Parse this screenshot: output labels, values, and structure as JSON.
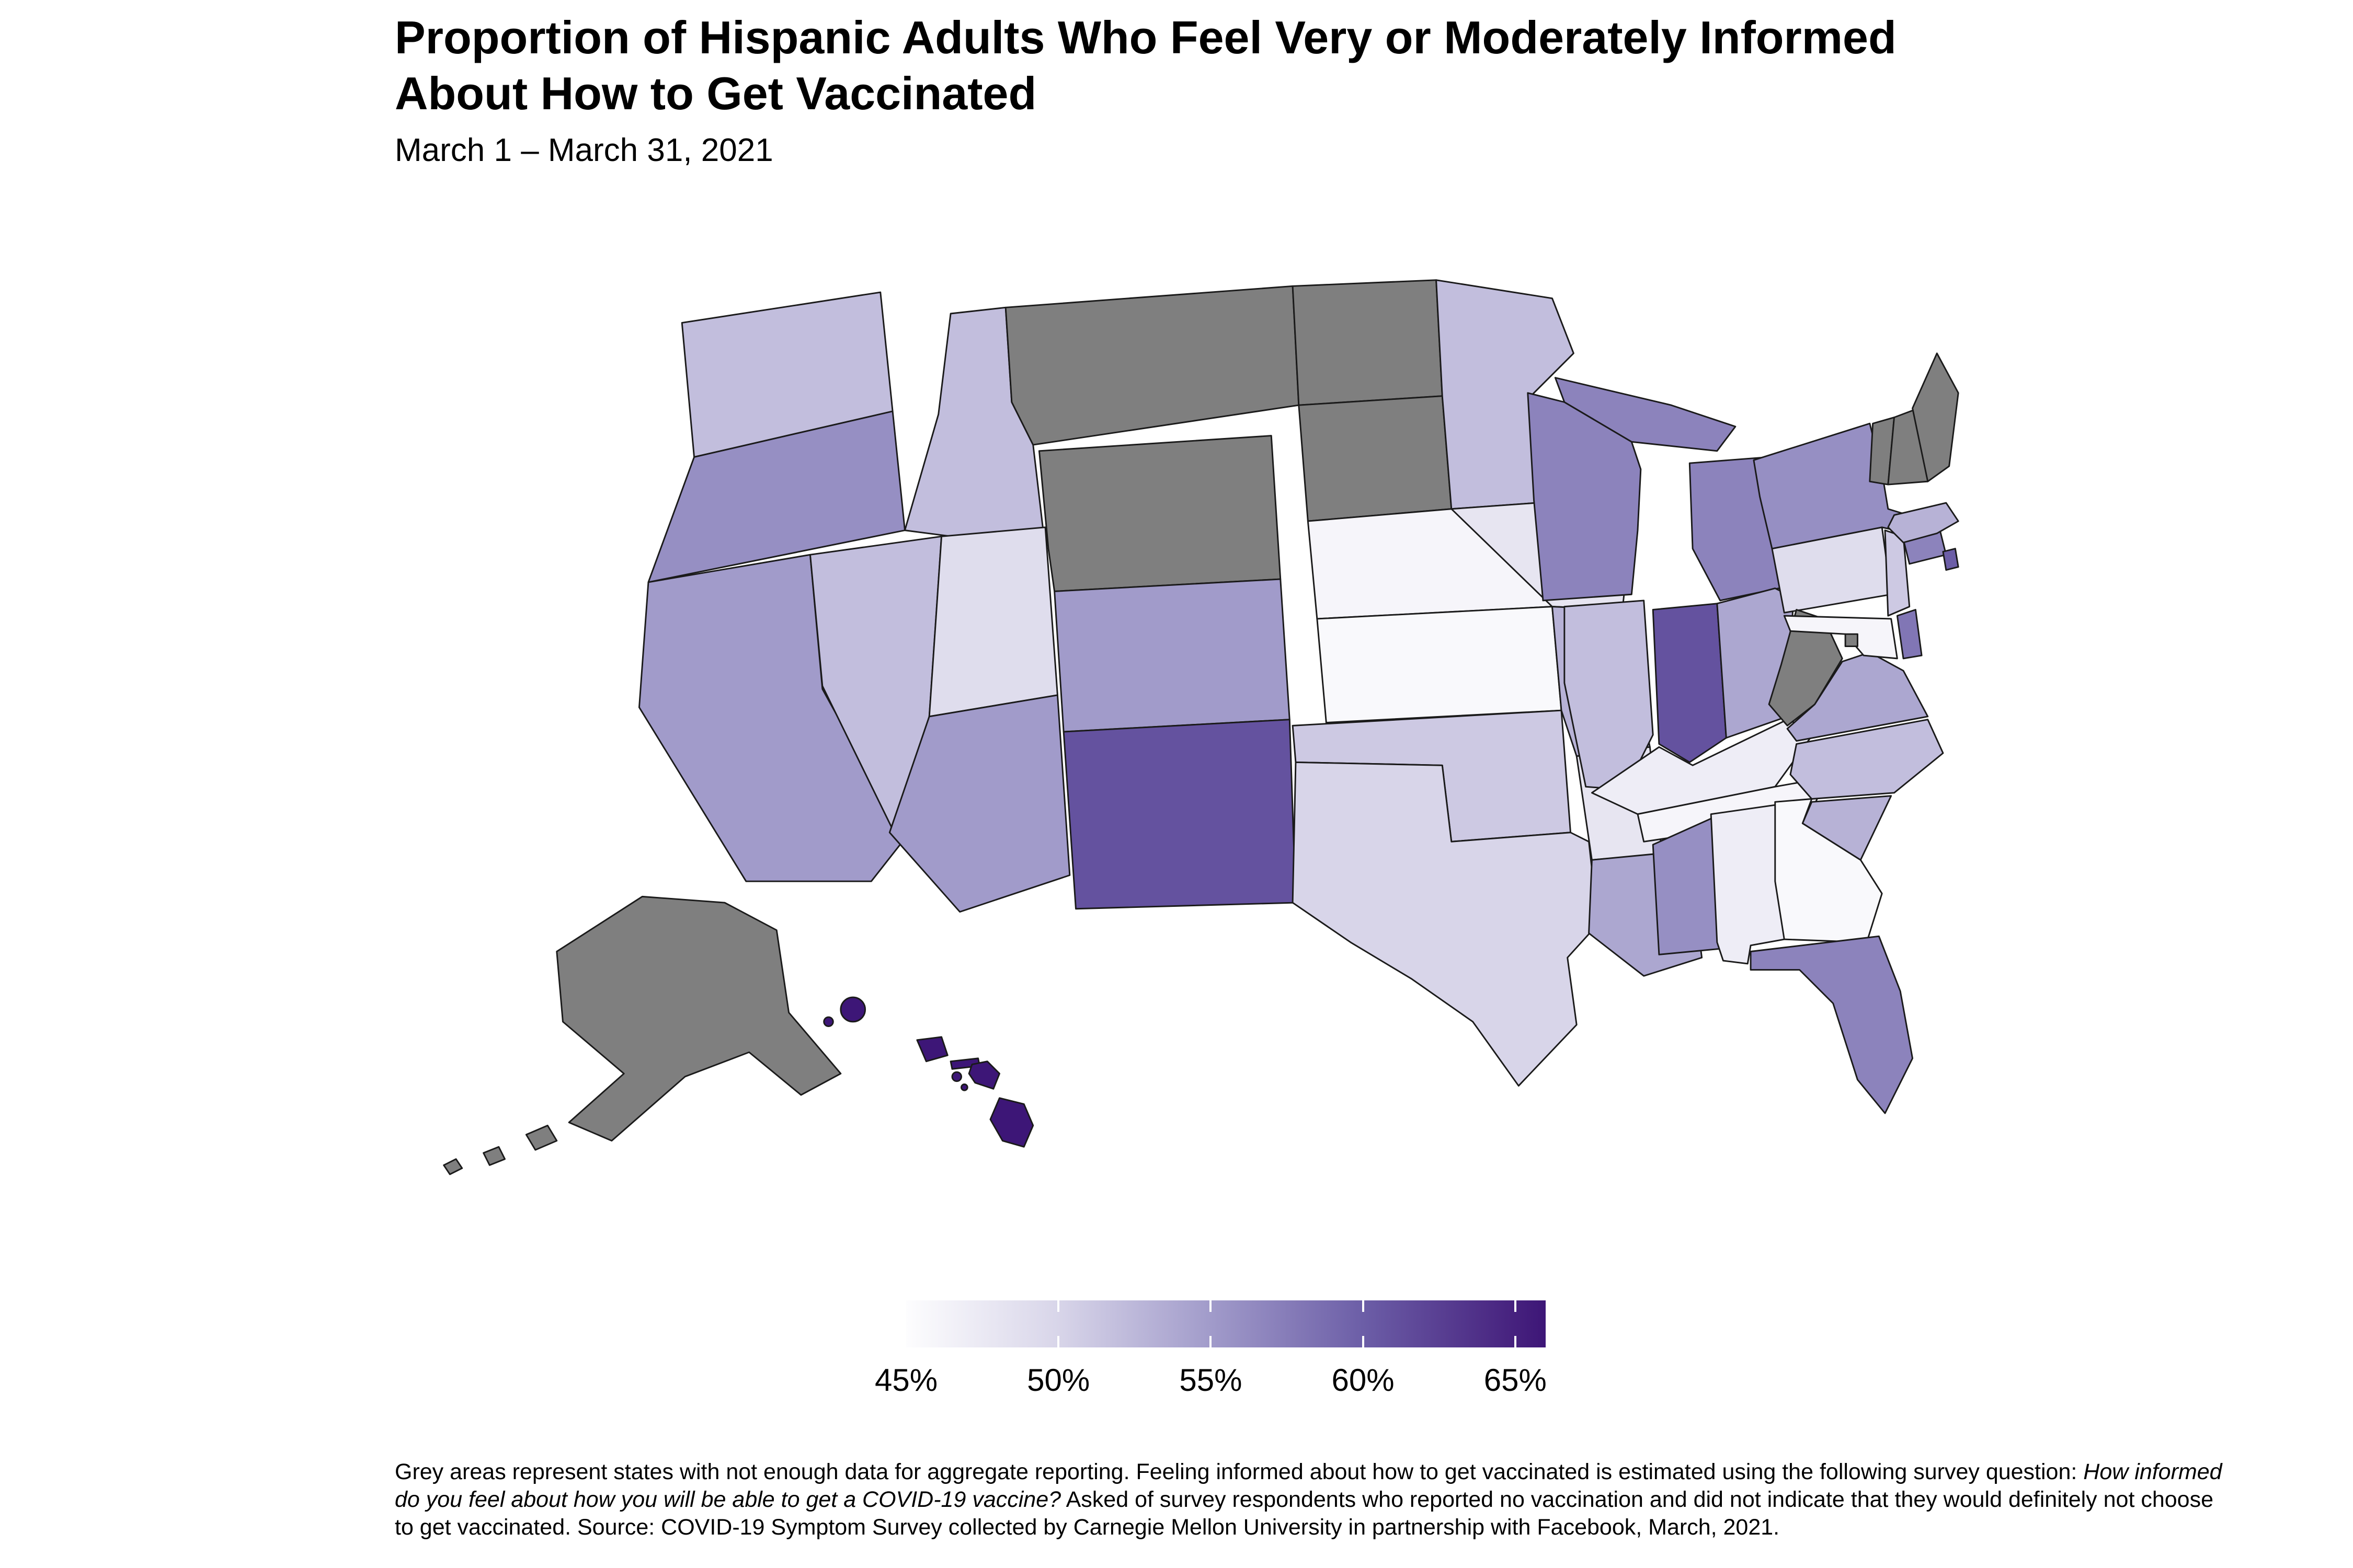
{
  "title": {
    "line1": "Proportion of Hispanic Adults Who Feel Very or Moderately Informed",
    "line2": "About How to Get Vaccinated"
  },
  "subtitle": "March 1 – March 31, 2021",
  "legend": {
    "tick_labels": [
      "45%",
      "50%",
      "55%",
      "60%",
      "65%"
    ],
    "tick_values": [
      45,
      50,
      55,
      60,
      65
    ],
    "domain": [
      45,
      66
    ],
    "gradient_stops": [
      {
        "value": 45,
        "color": "#fdfdfe"
      },
      {
        "value": 50,
        "color": "#d8d5e9"
      },
      {
        "value": 55,
        "color": "#a19bca"
      },
      {
        "value": 60,
        "color": "#6c5ea7"
      },
      {
        "value": 65,
        "color": "#46217e"
      },
      {
        "value": 66,
        "color": "#3d1677"
      }
    ]
  },
  "footnote": {
    "part1": "Grey areas represent states with not enough data for aggregate reporting. Feeling informed about how to get vaccinated is estimated using the following survey question: ",
    "italic": "How informed do you feel about how you will be able to get a COVID-19 vaccine?",
    "part2": " Asked of survey respondents who reported no vaccination and did not indicate that they would definitely not choose to get vaccinated. Source: COVID-19 Symptom Survey collected by Carnegie Mellon University in partnership with Facebook, March, 2021."
  },
  "chart_data": {
    "type": "choropleth_map",
    "region": "United States (states, Albers layout with Alaska and Hawaii insets)",
    "title": "Proportion of Hispanic Adults Who Feel Very or Moderately Informed About How to Get Vaccinated",
    "subtitle": "March 1 – March 31, 2021",
    "unit": "percent",
    "color_scale": "white-to-dark-purple sequential, 45% to 65%+",
    "no_data_color": "#7f7f7f",
    "no_data_meaning": "not enough data for aggregate reporting",
    "states": [
      {
        "abbr": "AL",
        "name": "Alabama",
        "value": 47
      },
      {
        "abbr": "AK",
        "name": "Alaska",
        "value": null
      },
      {
        "abbr": "AZ",
        "name": "Arizona",
        "value": 55
      },
      {
        "abbr": "AR",
        "name": "Arkansas",
        "value": 48
      },
      {
        "abbr": "CA",
        "name": "California",
        "value": 55
      },
      {
        "abbr": "CO",
        "name": "Colorado",
        "value": 55
      },
      {
        "abbr": "CT",
        "name": "Connecticut",
        "value": 57
      },
      {
        "abbr": "DE",
        "name": "Delaware",
        "value": 58
      },
      {
        "abbr": "DC",
        "name": "District of Columbia",
        "value": null
      },
      {
        "abbr": "FL",
        "name": "Florida",
        "value": 57
      },
      {
        "abbr": "GA",
        "name": "Georgia",
        "value": 45.5
      },
      {
        "abbr": "HI",
        "name": "Hawaii",
        "value": 66
      },
      {
        "abbr": "ID",
        "name": "Idaho",
        "value": 52
      },
      {
        "abbr": "IL",
        "name": "Illinois",
        "value": 52
      },
      {
        "abbr": "IN",
        "name": "Indiana",
        "value": 61
      },
      {
        "abbr": "IA",
        "name": "Iowa",
        "value": 48
      },
      {
        "abbr": "KS",
        "name": "Kansas",
        "value": 45.5
      },
      {
        "abbr": "KY",
        "name": "Kentucky",
        "value": 47
      },
      {
        "abbr": "LA",
        "name": "Louisiana",
        "value": 54
      },
      {
        "abbr": "ME",
        "name": "Maine",
        "value": null
      },
      {
        "abbr": "MD",
        "name": "Maryland",
        "value": 46
      },
      {
        "abbr": "MA",
        "name": "Massachusetts",
        "value": 53
      },
      {
        "abbr": "MI",
        "name": "Michigan",
        "value": 57
      },
      {
        "abbr": "MN",
        "name": "Minnesota",
        "value": 52
      },
      {
        "abbr": "MS",
        "name": "Mississippi",
        "value": 56
      },
      {
        "abbr": "MO",
        "name": "Missouri",
        "value": 53
      },
      {
        "abbr": "MT",
        "name": "Montana",
        "value": null
      },
      {
        "abbr": "NE",
        "name": "Nebraska",
        "value": 46
      },
      {
        "abbr": "NV",
        "name": "Nevada",
        "value": 52
      },
      {
        "abbr": "NH",
        "name": "New Hampshire",
        "value": null
      },
      {
        "abbr": "NJ",
        "name": "New Jersey",
        "value": 51
      },
      {
        "abbr": "NM",
        "name": "New Mexico",
        "value": 61
      },
      {
        "abbr": "NY",
        "name": "New York",
        "value": 56
      },
      {
        "abbr": "NC",
        "name": "North Carolina",
        "value": 52
      },
      {
        "abbr": "ND",
        "name": "North Dakota",
        "value": null
      },
      {
        "abbr": "OH",
        "name": "Ohio",
        "value": 54
      },
      {
        "abbr": "OK",
        "name": "Oklahoma",
        "value": 51
      },
      {
        "abbr": "OR",
        "name": "Oregon",
        "value": 56
      },
      {
        "abbr": "PA",
        "name": "Pennsylvania",
        "value": 49
      },
      {
        "abbr": "RI",
        "name": "Rhode Island",
        "value": 60
      },
      {
        "abbr": "SC",
        "name": "South Carolina",
        "value": 53
      },
      {
        "abbr": "SD",
        "name": "South Dakota",
        "value": null
      },
      {
        "abbr": "TN",
        "name": "Tennessee",
        "value": 46
      },
      {
        "abbr": "TX",
        "name": "Texas",
        "value": 50
      },
      {
        "abbr": "UT",
        "name": "Utah",
        "value": 49
      },
      {
        "abbr": "VT",
        "name": "Vermont",
        "value": null
      },
      {
        "abbr": "VA",
        "name": "Virginia",
        "value": 54
      },
      {
        "abbr": "WA",
        "name": "Washington",
        "value": 52
      },
      {
        "abbr": "WV",
        "name": "West Virginia",
        "value": null
      },
      {
        "abbr": "WI",
        "name": "Wisconsin",
        "value": 57
      },
      {
        "abbr": "WY",
        "name": "Wyoming",
        "value": null
      }
    ]
  }
}
